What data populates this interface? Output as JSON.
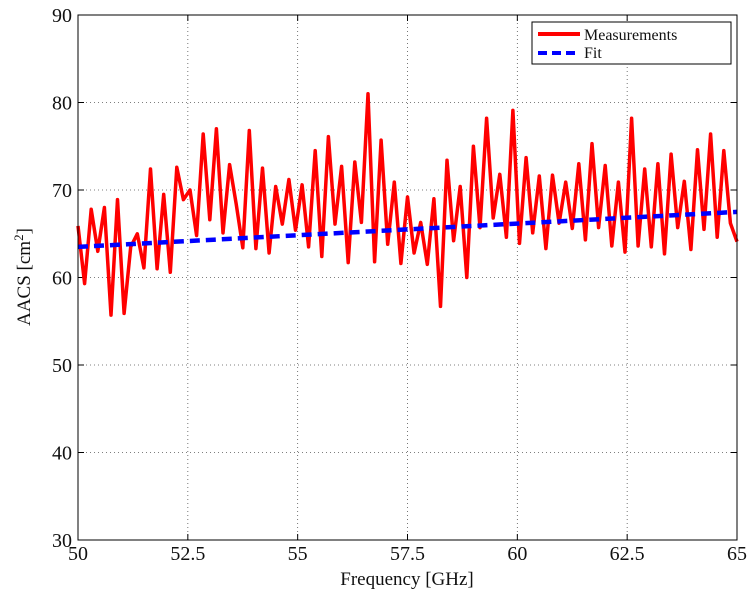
{
  "chart_data": {
    "type": "line",
    "xlabel": "Frequency [GHz]",
    "ylabel": "AACS [cm",
    "ylabel_sup": "2",
    "ylabel_close": "]",
    "xlim": [
      50,
      65
    ],
    "ylim": [
      30,
      90
    ],
    "x_ticks": [
      50,
      52.5,
      55,
      57.5,
      60,
      62.5,
      65
    ],
    "x_tick_labels": [
      "50",
      "52.5",
      "55",
      "57.5",
      "60",
      "62.5",
      "65"
    ],
    "y_ticks": [
      30,
      40,
      50,
      60,
      70,
      80,
      90
    ],
    "y_tick_labels": [
      "30",
      "40",
      "50",
      "60",
      "70",
      "80",
      "90"
    ],
    "grid": true,
    "legend_placement": "top-right",
    "series": [
      {
        "name": "Measurements",
        "color": "#ff0000",
        "style": "solid",
        "x": [
          50.0,
          50.15,
          50.3,
          50.45,
          50.6,
          50.75,
          50.9,
          51.05,
          51.2,
          51.35,
          51.5,
          51.65,
          51.8,
          51.95,
          52.1,
          52.25,
          52.4,
          52.55,
          52.7,
          52.85,
          53.0,
          53.15,
          53.3,
          53.45,
          53.6,
          53.75,
          53.9,
          54.05,
          54.2,
          54.35,
          54.5,
          54.65,
          54.8,
          54.95,
          55.1,
          55.25,
          55.4,
          55.55,
          55.7,
          55.85,
          56.0,
          56.15,
          56.3,
          56.45,
          56.6,
          56.75,
          56.9,
          57.05,
          57.2,
          57.35,
          57.5,
          57.65,
          57.8,
          57.95,
          58.1,
          58.25,
          58.4,
          58.55,
          58.7,
          58.85,
          59.0,
          59.15,
          59.3,
          59.45,
          59.6,
          59.75,
          59.9,
          60.05,
          60.2,
          60.35,
          60.5,
          60.65,
          60.8,
          60.95,
          61.1,
          61.25,
          61.4,
          61.55,
          61.7,
          61.85,
          62.0,
          62.15,
          62.3,
          62.45,
          62.6,
          62.75,
          62.9,
          63.05,
          63.2,
          63.35,
          63.5,
          63.65,
          63.8,
          63.95,
          64.1,
          64.25,
          64.4,
          64.55,
          64.7,
          64.85,
          65.0
        ],
        "values": [
          65.9,
          59.3,
          67.8,
          63.0,
          68.0,
          55.7,
          68.9,
          55.9,
          63.5,
          65.0,
          61.1,
          72.4,
          61.0,
          69.5,
          60.6,
          72.6,
          68.9,
          70.0,
          64.8,
          76.4,
          66.6,
          77.0,
          65.1,
          72.9,
          68.4,
          63.4,
          76.8,
          63.3,
          72.5,
          62.8,
          70.4,
          66.1,
          71.2,
          65.4,
          70.6,
          63.5,
          74.5,
          62.4,
          76.1,
          66.1,
          72.7,
          61.7,
          73.2,
          66.3,
          81.0,
          61.8,
          75.7,
          63.8,
          70.9,
          61.6,
          69.2,
          62.8,
          66.3,
          61.5,
          69.0,
          56.7,
          73.4,
          64.2,
          70.4,
          60.0,
          75.0,
          65.7,
          78.2,
          66.8,
          71.8,
          64.6,
          79.1,
          63.9,
          73.7,
          65.1,
          71.6,
          63.3,
          71.7,
          66.2,
          70.9,
          65.6,
          73.0,
          64.3,
          75.3,
          65.7,
          72.8,
          63.6,
          70.9,
          62.9,
          78.2,
          63.6,
          72.4,
          63.5,
          73.0,
          62.7,
          74.1,
          65.7,
          71.0,
          63.2,
          74.6,
          65.5,
          76.4,
          64.6,
          74.5,
          66.2,
          64.1
        ]
      },
      {
        "name": "Fit",
        "color": "#0000ff",
        "style": "dashed",
        "x": [
          50,
          65
        ],
        "values": [
          63.5,
          67.5
        ]
      }
    ]
  }
}
